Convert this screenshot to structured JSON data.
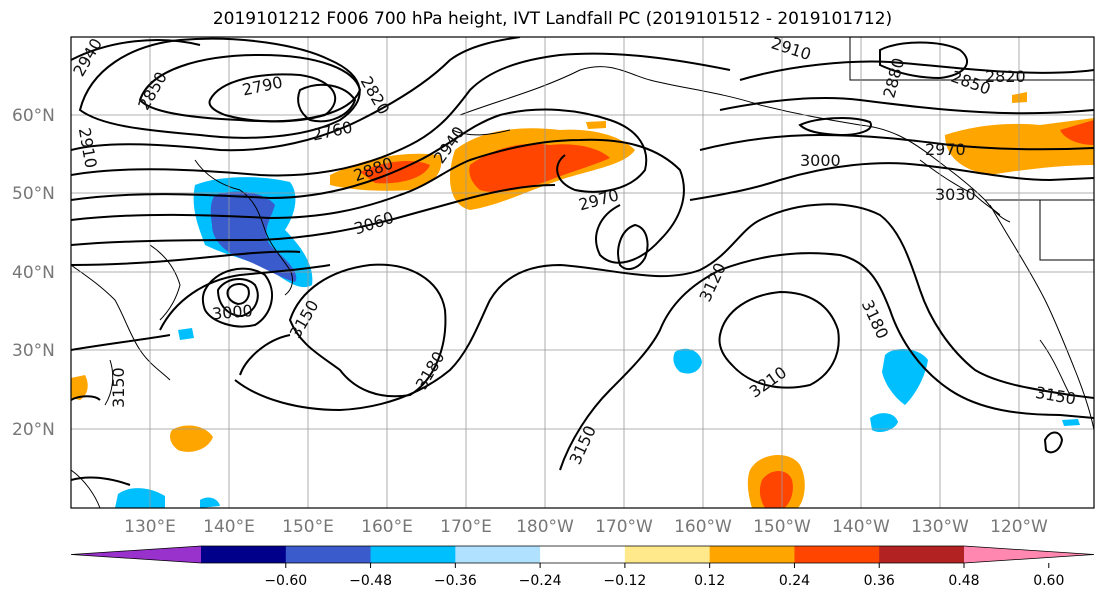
{
  "title": "2019101212 F006 700 hPa height, IVT Landfall PC (2019101512 - 2019101712)",
  "lat_labels": [
    "60°N",
    "50°N",
    "40°N",
    "30°N",
    "20°N"
  ],
  "lon_labels": [
    "130°E",
    "140°E",
    "150°E",
    "160°E",
    "170°E",
    "180°W",
    "170°W",
    "160°W",
    "150°W",
    "140°W",
    "130°W",
    "120°W"
  ],
  "contour_labels": [
    "2940",
    "2850",
    "2910",
    "2790",
    "2760",
    "2820",
    "2880",
    "2940",
    "3060",
    "3000",
    "3150",
    "3150",
    "3180",
    "3150",
    "2970",
    "3120",
    "3210",
    "3180",
    "3150",
    "2910",
    "2880",
    "2850",
    "2820",
    "3000",
    "2970",
    "3030"
  ],
  "colorbar": {
    "colors": [
      "#9932cc",
      "#00008b",
      "#3a5bcc",
      "#00bfff",
      "#b0e2ff",
      "#ffffff",
      "#ffe98a",
      "#ffa500",
      "#ff4500",
      "#b22222",
      "#ff87b0"
    ],
    "tick_labels": [
      "−0.60",
      "−0.48",
      "−0.36",
      "−0.24",
      "−0.12",
      "0.12",
      "0.24",
      "0.36",
      "0.48",
      "0.60"
    ]
  }
}
